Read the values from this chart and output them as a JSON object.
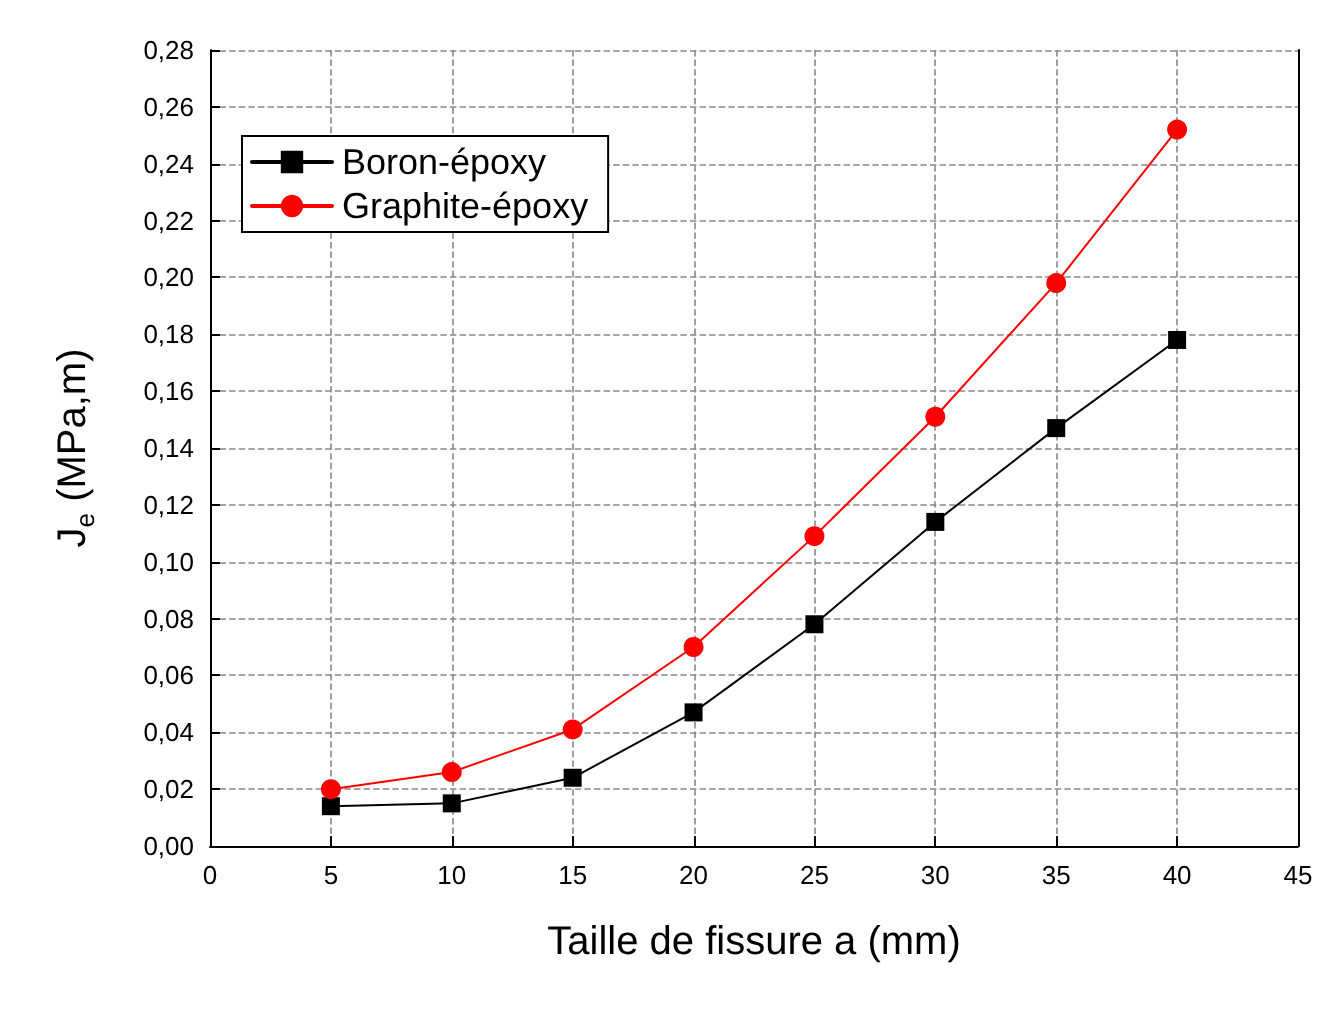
{
  "chart_data": {
    "type": "line",
    "xlabel": "Taille de fissure a (mm)",
    "ylabel": "J$_{e}$ (MPa,m)",
    "x": [
      5,
      10,
      15,
      20,
      25,
      30,
      35,
      40
    ],
    "series": [
      {
        "name": "Boron-époxy",
        "color": "#000000",
        "marker": "square",
        "values": [
          0.014,
          0.015,
          0.024,
          0.047,
          0.078,
          0.114,
          0.147,
          0.178
        ]
      },
      {
        "name": "Graphite-époxy",
        "color": "#ff0000",
        "marker": "circle",
        "values": [
          0.02,
          0.026,
          0.041,
          0.07,
          0.109,
          0.151,
          0.198,
          0.252
        ]
      }
    ],
    "xlim": [
      0,
      45
    ],
    "xticks": [
      0,
      5,
      10,
      15,
      20,
      25,
      30,
      35,
      40,
      45
    ],
    "ylim": [
      0,
      0.28
    ],
    "yticks": [
      {
        "value": 0,
        "label": "0,00"
      },
      {
        "value": 0.02,
        "label": "0,02"
      },
      {
        "value": 0.04,
        "label": "0,04"
      },
      {
        "value": 0.06,
        "label": "0,06"
      },
      {
        "value": 0.08,
        "label": "0,08"
      },
      {
        "value": 0.1,
        "label": "0,10"
      },
      {
        "value": 0.12,
        "label": "0,12"
      },
      {
        "value": 0.14,
        "label": "0,14"
      },
      {
        "value": 0.16,
        "label": "0,16"
      },
      {
        "value": 0.18,
        "label": "0,18"
      },
      {
        "value": 0.2,
        "label": "0,20"
      },
      {
        "value": 0.22,
        "label": "0,22"
      },
      {
        "value": 0.24,
        "label": "0,24"
      },
      {
        "value": 0.26,
        "label": "0,26"
      },
      {
        "value": 0.28,
        "label": "0,28"
      }
    ],
    "grid": true,
    "legend": "top left",
    "line_style": "solid"
  }
}
